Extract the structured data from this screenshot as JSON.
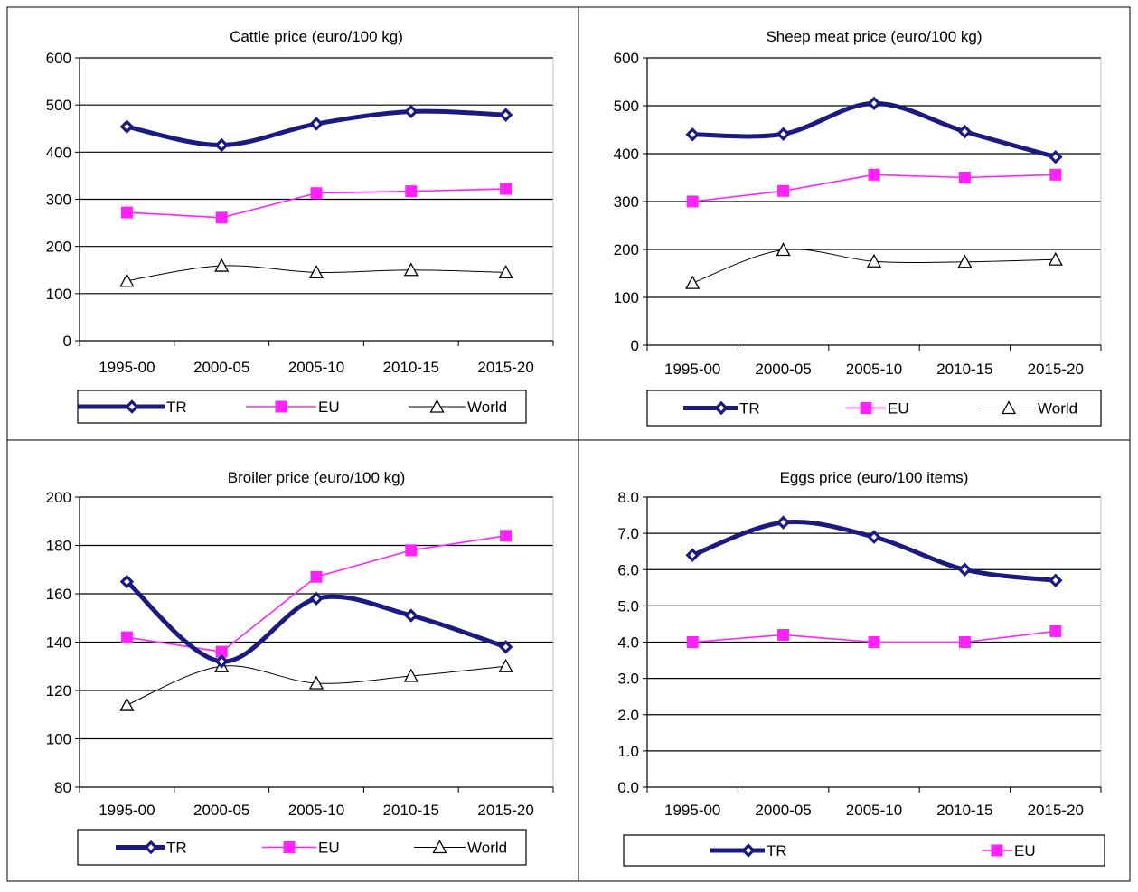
{
  "colors": {
    "TR": "#1a1a80",
    "EU": "#ff22ff",
    "World": "#000000",
    "grid": "#000000",
    "plot_bg": "#c0c0c0"
  },
  "chart_data": [
    {
      "type": "line",
      "title": "Cattle price (euro/100 kg)",
      "categories": [
        "1995-00",
        "2000-05",
        "2005-10",
        "2010-15",
        "2015-20"
      ],
      "ylim": [
        0,
        600
      ],
      "yticks": [
        "0",
        "100",
        "200",
        "300",
        "400",
        "500",
        "600"
      ],
      "grid": true,
      "legend_placement": "bottom",
      "series": [
        {
          "name": "TR",
          "values": [
            454,
            415,
            460,
            486,
            479
          ]
        },
        {
          "name": "EU",
          "values": [
            272,
            261,
            313,
            317,
            322
          ]
        },
        {
          "name": "World",
          "values": [
            127,
            159,
            145,
            150,
            145
          ]
        }
      ]
    },
    {
      "type": "line",
      "title": "Sheep meat price (euro/100 kg)",
      "categories": [
        "1995-00",
        "2000-05",
        "2005-10",
        "2010-15",
        "2015-20"
      ],
      "ylim": [
        0,
        600
      ],
      "yticks": [
        "0",
        "100",
        "200",
        "300",
        "400",
        "500",
        "600"
      ],
      "grid": true,
      "legend_placement": "bottom",
      "series": [
        {
          "name": "TR",
          "values": [
            440,
            441,
            505,
            446,
            393
          ]
        },
        {
          "name": "EU",
          "values": [
            300,
            322,
            356,
            350,
            356
          ]
        },
        {
          "name": "World",
          "values": [
            130,
            199,
            175,
            174,
            179
          ]
        }
      ]
    },
    {
      "type": "line",
      "title": "Broiler price (euro/100 kg)",
      "categories": [
        "1995-00",
        "2000-05",
        "2005-10",
        "2010-15",
        "2015-20"
      ],
      "ylim": [
        80,
        200
      ],
      "yticks": [
        "80",
        "100",
        "120",
        "140",
        "160",
        "180",
        "200"
      ],
      "grid": true,
      "legend_placement": "bottom",
      "series": [
        {
          "name": "TR",
          "values": [
            165,
            132,
            158,
            151,
            138
          ]
        },
        {
          "name": "EU",
          "values": [
            142,
            136,
            167,
            178,
            184
          ]
        },
        {
          "name": "World",
          "values": [
            114,
            130,
            123,
            126,
            130
          ]
        }
      ]
    },
    {
      "type": "line",
      "title": "Eggs price (euro/100 items)",
      "categories": [
        "1995-00",
        "2000-05",
        "2005-10",
        "2010-15",
        "2015-20"
      ],
      "ylim": [
        0,
        8
      ],
      "yticks": [
        "0.0",
        "1.0",
        "2.0",
        "3.0",
        "4.0",
        "5.0",
        "6.0",
        "7.0",
        "8.0"
      ],
      "grid": true,
      "legend_placement": "bottom",
      "series": [
        {
          "name": "TR",
          "values": [
            6.4,
            7.3,
            6.9,
            6.0,
            5.7
          ]
        },
        {
          "name": "EU",
          "values": [
            4.0,
            4.2,
            4.0,
            4.0,
            4.3
          ]
        }
      ]
    }
  ]
}
